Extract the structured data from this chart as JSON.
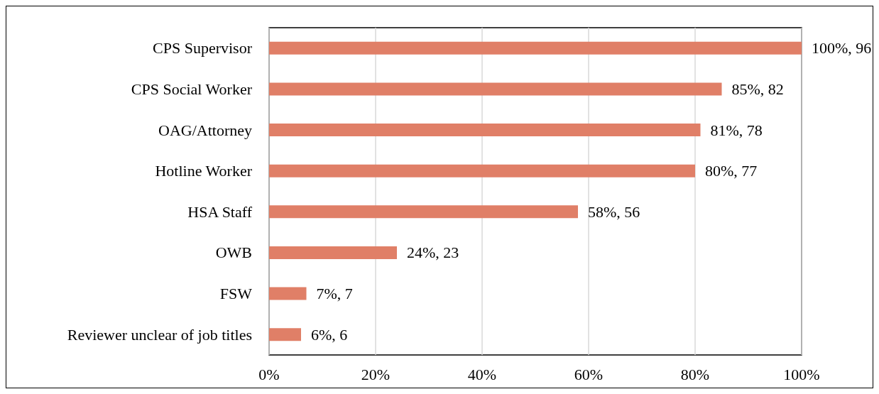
{
  "chart_data": {
    "type": "bar",
    "orientation": "horizontal",
    "categories": [
      "CPS Supervisor",
      "CPS Social Worker",
      "OAG/Attorney",
      "Hotline Worker",
      "HSA Staff",
      "OWB",
      "FSW",
      "Reviewer unclear of job titles"
    ],
    "values": [
      100,
      85,
      81,
      80,
      58,
      24,
      7,
      6
    ],
    "value_labels": [
      "100%, 96",
      "85%, 82",
      "81%, 78",
      "80%, 77",
      "58%, 56",
      "24%, 23",
      "7%, 7",
      "6%, 6"
    ],
    "color": "#e07f67",
    "xlim": [
      0,
      100
    ],
    "xticks": [
      {
        "value": 0,
        "label": "0%"
      },
      {
        "value": 20,
        "label": "20%"
      },
      {
        "value": 40,
        "label": "40%"
      },
      {
        "value": 60,
        "label": "60%"
      },
      {
        "value": 80,
        "label": "80%"
      },
      {
        "value": 100,
        "label": "100%"
      }
    ],
    "grid": "x"
  }
}
